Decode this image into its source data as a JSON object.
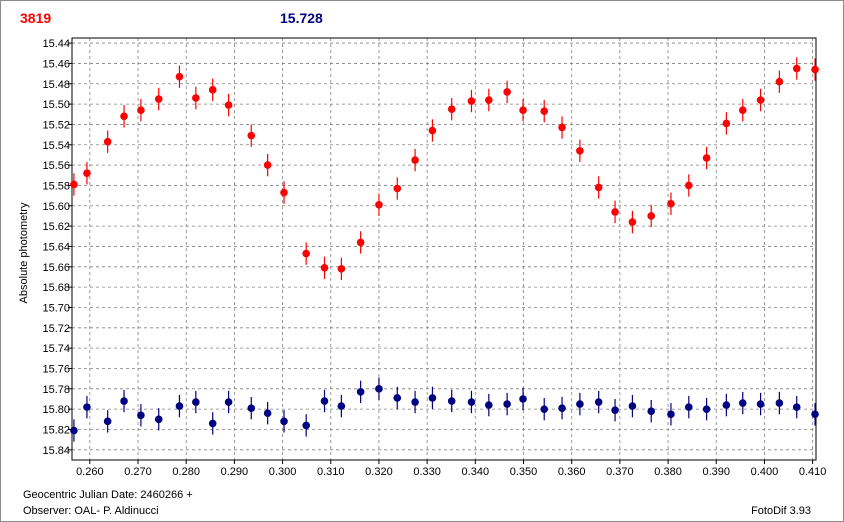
{
  "header": {
    "star_id": "3819",
    "magnitude": "15.728"
  },
  "footer": {
    "julian_date": "Geocentric Julian Date: 2460266 +",
    "observer": "Observer: OAL- P. Aldinucci",
    "software": "FotoDif 3.93"
  },
  "colors": {
    "target": "#ff0000",
    "comparison": "#000080",
    "grid": "#808080"
  },
  "chart_data": {
    "type": "scatter",
    "ylabel": "Absolute photometry",
    "xlabel": "",
    "xlim": [
      0.2563,
      0.4107
    ],
    "ylim": [
      15.85,
      15.435
    ],
    "y_inverted": true,
    "grid": true,
    "x_ticks": [
      "0.260",
      "0.270",
      "0.280",
      "0.290",
      "0.300",
      "0.310",
      "0.320",
      "0.330",
      "0.340",
      "0.350",
      "0.360",
      "0.370",
      "0.380",
      "0.390",
      "0.400",
      "0.410"
    ],
    "y_ticks": [
      "15.44",
      "15.46",
      "15.48",
      "15.50",
      "15.52",
      "15.54",
      "15.56",
      "15.58",
      "15.60",
      "15.62",
      "15.64",
      "15.66",
      "15.68",
      "15.70",
      "15.72",
      "15.74",
      "15.76",
      "15.78",
      "15.80",
      "15.82",
      "15.84"
    ],
    "error_bar": 0.011,
    "series": [
      {
        "color": "#ff0000",
        "x": [
          0.2567,
          0.2594,
          0.2637,
          0.2671,
          0.2706,
          0.2743,
          0.2786,
          0.282,
          0.2855,
          0.2888,
          0.2935,
          0.2969,
          0.3003,
          0.3049,
          0.3087,
          0.3122,
          0.3162,
          0.32,
          0.3238,
          0.3275,
          0.3311,
          0.3351,
          0.3392,
          0.3428,
          0.3466,
          0.3499,
          0.3543,
          0.358,
          0.3617,
          0.3656,
          0.369,
          0.3726,
          0.3765,
          0.3806,
          0.3843,
          0.388,
          0.3921,
          0.3955,
          0.3992,
          0.4031,
          0.4067,
          0.4105
        ],
        "y": [
          15.579,
          15.568,
          15.537,
          15.512,
          15.506,
          15.495,
          15.473,
          15.494,
          15.486,
          15.501,
          15.531,
          15.56,
          15.587,
          15.647,
          15.661,
          15.662,
          15.636,
          15.599,
          15.583,
          15.555,
          15.526,
          15.505,
          15.497,
          15.496,
          15.488,
          15.506,
          15.507,
          15.523,
          15.546,
          15.582,
          15.606,
          15.616,
          15.61,
          15.598,
          15.58,
          15.553,
          15.519,
          15.506,
          15.496,
          15.478,
          15.465,
          15.466
        ]
      },
      {
        "color": "#000080",
        "x": [
          0.2567,
          0.2594,
          0.2637,
          0.2671,
          0.2706,
          0.2743,
          0.2786,
          0.282,
          0.2855,
          0.2888,
          0.2935,
          0.2969,
          0.3003,
          0.3049,
          0.3087,
          0.3122,
          0.3162,
          0.32,
          0.3238,
          0.3275,
          0.3311,
          0.3351,
          0.3392,
          0.3428,
          0.3466,
          0.3499,
          0.3543,
          0.358,
          0.3617,
          0.3656,
          0.369,
          0.3726,
          0.3765,
          0.3806,
          0.3843,
          0.388,
          0.3921,
          0.3955,
          0.3992,
          0.4031,
          0.4067,
          0.4105
        ],
        "y": [
          15.821,
          15.798,
          15.812,
          15.792,
          15.806,
          15.81,
          15.797,
          15.793,
          15.814,
          15.793,
          15.799,
          15.804,
          15.812,
          15.816,
          15.792,
          15.797,
          15.783,
          15.78,
          15.789,
          15.793,
          15.789,
          15.792,
          15.793,
          15.796,
          15.795,
          15.79,
          15.8,
          15.799,
          15.795,
          15.793,
          15.801,
          15.797,
          15.802,
          15.805,
          15.798,
          15.8,
          15.796,
          15.794,
          15.795,
          15.794,
          15.798,
          15.805
        ]
      }
    ]
  }
}
